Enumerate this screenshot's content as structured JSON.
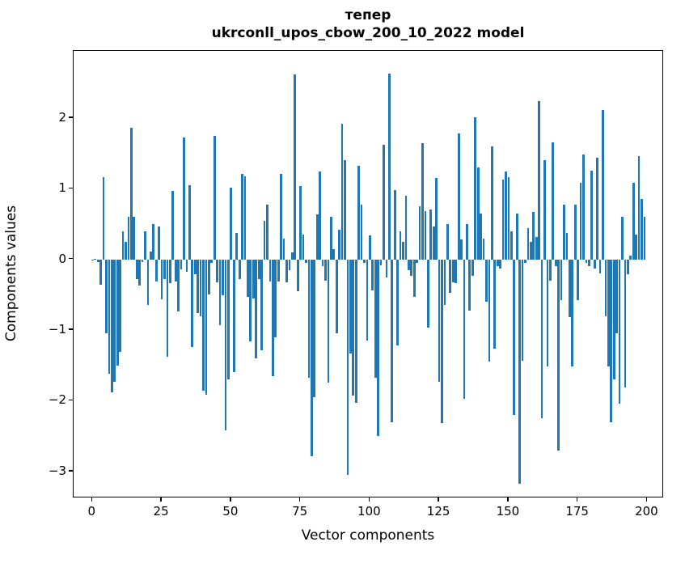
{
  "figure": {
    "title_line1": "тепер",
    "title_line2": "ukrconll_upos_cbow_200_10_2022 model",
    "xlabel": "Vector components",
    "ylabel": "Components values",
    "background_color": "#ffffff",
    "axis_color": "#000000"
  },
  "chart_data": {
    "type": "bar",
    "title": "тепер\nukrconll_upos_cbow_200_10_2022 model",
    "xlabel": "Vector components",
    "ylabel": "Components values",
    "bar_color": "#1f77b4",
    "bar_width": 0.8,
    "grid": false,
    "legend": null,
    "x_start": 0,
    "xlim": [
      -6.8,
      206.0
    ],
    "ylim": [
      -3.38,
      2.95
    ],
    "xticks": [
      0,
      25,
      50,
      75,
      100,
      125,
      150,
      175,
      200
    ],
    "yticks": [
      2,
      1,
      0,
      -1,
      -2,
      -3
    ],
    "values": [
      -0.02,
      0.01,
      -0.04,
      -0.36,
      1.17,
      -1.05,
      -1.62,
      -1.88,
      -1.73,
      -1.5,
      -1.31,
      0.4,
      0.25,
      0.6,
      1.86,
      0.6,
      -0.28,
      -0.37,
      -0.04,
      0.4,
      -0.65,
      0.11,
      0.5,
      -0.31,
      0.47,
      -0.57,
      -0.28,
      -1.38,
      -0.34,
      0.97,
      -0.31,
      -0.74,
      -0.14,
      1.72,
      -0.18,
      1.05,
      -1.24,
      -0.21,
      -0.76,
      -0.81,
      -1.86,
      -1.91,
      -0.49,
      -0.05,
      1.75,
      -0.32,
      -0.93,
      -0.51,
      -2.42,
      -1.7,
      1.02,
      -1.59,
      0.38,
      -0.28,
      1.21,
      1.18,
      -0.53,
      -1.16,
      -0.55,
      -1.4,
      -0.28,
      -1.29,
      0.55,
      0.78,
      -0.31,
      -1.65,
      -1.1,
      -0.31,
      1.21,
      0.3,
      -0.32,
      -0.15,
      0.1,
      2.62,
      -0.45,
      1.04,
      0.35,
      -0.05,
      -1.68,
      -2.78,
      -1.95,
      0.64,
      1.25,
      -0.1,
      -0.3,
      -1.74,
      0.6,
      0.15,
      -1.05,
      0.42,
      1.92,
      1.4,
      -3.05,
      -1.33,
      -1.93,
      -2.03,
      1.33,
      0.77,
      -0.05,
      -1.15,
      0.34,
      -0.44,
      -1.67,
      -2.5,
      -0.08,
      1.62,
      -0.25,
      2.63,
      -2.3,
      0.98,
      -1.22,
      0.4,
      0.25,
      0.9,
      -0.15,
      -0.23,
      -0.53,
      -0.05,
      0.75,
      1.64,
      0.68,
      -0.96,
      0.71,
      0.47,
      1.15,
      -1.73,
      -2.32,
      -0.65,
      0.5,
      -0.47,
      -0.32,
      -0.34,
      1.78,
      0.28,
      -1.97,
      0.5,
      -0.73,
      -0.23,
      2.01,
      1.3,
      0.65,
      0.3,
      -0.6,
      -1.45,
      1.6,
      -1.26,
      -0.09,
      -0.13,
      1.13,
      1.24,
      1.17,
      0.4,
      -2.2,
      0.65,
      -3.17,
      -1.43,
      -0.05,
      0.44,
      0.25,
      0.67,
      0.32,
      2.24,
      -2.25,
      1.41,
      -1.52,
      -0.3,
      1.66,
      -0.1,
      -2.7,
      -0.58,
      0.77,
      0.38,
      -0.82,
      -1.52,
      0.78,
      -0.58,
      1.08,
      1.48,
      -0.05,
      -0.1,
      1.26,
      -0.13,
      1.44,
      -0.2,
      2.12,
      -0.8,
      -1.51,
      -2.3,
      -1.7,
      -1.05,
      -2.04,
      0.6,
      -1.81,
      -0.21,
      0.05,
      1.08,
      0.35,
      1.46,
      0.86,
      0.6
    ]
  }
}
